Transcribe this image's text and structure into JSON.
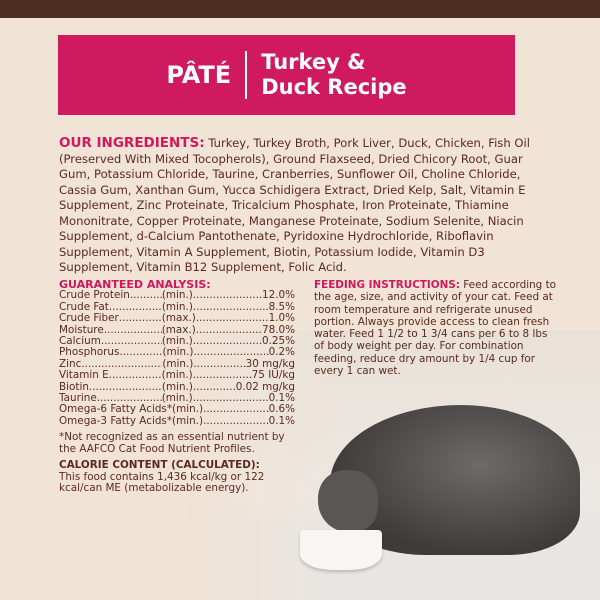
{
  "banner": {
    "pate": "PÂTÉ",
    "recipe_line1": "Turkey &",
    "recipe_line2": "Duck Recipe"
  },
  "ingredients": {
    "heading": "OUR INGREDIENTS:",
    "text": "Turkey, Turkey Broth, Pork Liver, Duck, Chicken, Fish Oil (Preserved With Mixed Tocopherols), Ground Flaxseed, Dried Chicory Root, Guar Gum, Potassium Chloride, Taurine, Cranberries, Sunflower Oil, Choline Chloride, Cassia Gum, Xanthan Gum, Yucca Schidigera Extract, Dried Kelp, Salt, Vitamin E Supplement, Zinc Proteinate, Tricalcium Phosphate, Iron Proteinate, Thiamine Mononitrate, Copper Proteinate, Manganese Proteinate, Sodium Selenite, Niacin Supplement, d-Calcium Pantothenate, Pyridoxine Hydrochloride, Riboflavin Supplement, Vitamin A Supplement, Biotin, Potassium Iodide, Vitamin D3 Supplement, Vitamin B12 Supplement, Folic Acid."
  },
  "analysis": {
    "heading": "GUARANTEED ANALYSIS:",
    "rows": [
      {
        "name": "Crude Protein",
        "qual": "(min.)",
        "value": "12.0%"
      },
      {
        "name": "Crude Fat",
        "qual": "(min.)",
        "value": "8.5%"
      },
      {
        "name": "Crude Fiber",
        "qual": "(max.)",
        "value": "1.0%"
      },
      {
        "name": "Moisture",
        "qual": "(max.)",
        "value": "78.0%"
      },
      {
        "name": "Calcium",
        "qual": "(min.)",
        "value": "0.25%"
      },
      {
        "name": "Phosphorus",
        "qual": "(min.)",
        "value": "0.2%"
      },
      {
        "name": "Zinc",
        "qual": "(min.)",
        "value": "30 mg/kg"
      },
      {
        "name": "Vitamin E",
        "qual": "(min.)",
        "value": "75 IU/kg"
      },
      {
        "name": "Biotin",
        "qual": "(min.)",
        "value": "0.02 mg/kg"
      },
      {
        "name": "Taurine",
        "qual": "(min.)",
        "value": "0.1%"
      },
      {
        "name": "Omega-6 Fatty Acids*",
        "qual": "(min.)",
        "value": "0.6%"
      },
      {
        "name": "Omega-3 Fatty Acids*",
        "qual": "(min.)",
        "value": "0.1%"
      }
    ],
    "note": "*Not recognized as an essential nutrient by the AAFCO Cat Food Nutrient Profiles.",
    "calorie_heading": "CALORIE CONTENT (CALCULATED):",
    "calorie_text": "This food contains 1,436 kcal/kg or 122 kcal/can ME (metabolizable energy)."
  },
  "feeding": {
    "heading": "FEEDING INSTRUCTIONS:",
    "text": "Feed according to the age, size, and activity of your cat. Feed at room temperature and refrigerate unused portion. Always provide access to clean fresh water. Feed 1 1/2 to 1 3/4 cans per 6 to 8 lbs of body weight per day. For combination feeding, reduce dry amount by 1/4 cup for every 1 can wet."
  },
  "colors": {
    "accent": "#cf1a5f",
    "text": "#5b2a1f",
    "background": "#f1e3d5",
    "topbar": "#4b2d22"
  }
}
